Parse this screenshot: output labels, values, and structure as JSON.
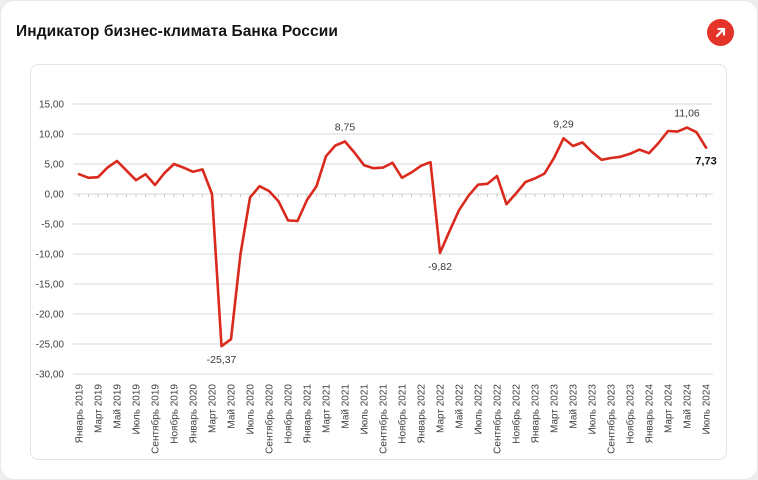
{
  "header": {
    "title": "Индикатор бизнес-климата Банка России",
    "export_button": {
      "icon": "arrow-up-right-icon",
      "color": "#e43329",
      "arrow_color": "#ffffff"
    }
  },
  "colors": {
    "line": "#da291d",
    "grid": "#d9d9d9",
    "axis_text": "#3f3f3f",
    "annotation_text": "#3a3a3a",
    "annotation_bold_text": "#141414",
    "panel_border": "#e4e4e4",
    "card_bg": "#ffffff",
    "page_bg": "#ededed"
  },
  "chart_data": {
    "type": "line",
    "title": "Индикатор бизнес-климата Банка России",
    "xlabel": "",
    "ylabel": "",
    "ylim": [
      -30,
      15
    ],
    "grid": "horizontal",
    "legend": "none",
    "y_ticks": [
      15,
      10,
      5,
      0,
      -5,
      -10,
      -15,
      -20,
      -25,
      -30
    ],
    "y_tick_labels": [
      "15,00",
      "10,00",
      "5,00",
      "0,00",
      "-5,00",
      "-10,00",
      "-15,00",
      "-20,00",
      "-25,00",
      "-30,00"
    ],
    "x_tick_labels": [
      "Январь 2019",
      "Март 2019",
      "Май 2019",
      "Июль 2019",
      "Сентябрь 2019",
      "Ноябрь 2019",
      "Январь 2020",
      "Март 2020",
      "Май 2020",
      "Июль 2020",
      "Сентябрь 2020",
      "Ноябрь 2020",
      "Январь 2021",
      "Март 2021",
      "Май 2021",
      "Июль 2021",
      "Сентябрь 2021",
      "Ноябрь 2021",
      "Январь 2022",
      "Март 2022",
      "Май 2022",
      "Июль 2022",
      "Сентябрь 2022",
      "Ноябрь 2022",
      "Январь 2023",
      "Март 2023",
      "Май 2023",
      "Июль 2023",
      "Сентябрь 2023",
      "Ноябрь 2023",
      "Январь 2024",
      "Март 2024",
      "Май 2024",
      "Июль 2024"
    ],
    "x_tick_every_n_months": 2,
    "series": [
      {
        "name": "Индикатор бизнес-климата",
        "start_month": "Январь 2019",
        "end_month": "Июль 2024",
        "values": [
          3.3,
          2.7,
          2.8,
          4.4,
          5.5,
          3.9,
          2.3,
          3.3,
          1.5,
          3.5,
          5.0,
          4.4,
          3.7,
          4.1,
          0.0,
          -25.37,
          -24.2,
          -10.0,
          -0.6,
          1.3,
          0.5,
          -1.2,
          -4.4,
          -4.5,
          -1.0,
          1.3,
          6.3,
          8.1,
          8.75,
          6.9,
          4.8,
          4.3,
          4.4,
          5.2,
          2.7,
          3.6,
          4.7,
          5.3,
          -9.82,
          -6.2,
          -2.7,
          -0.3,
          1.55,
          1.7,
          3.0,
          -1.7,
          0.1,
          2.0,
          2.6,
          3.4,
          6.0,
          9.29,
          8.0,
          8.6,
          7.0,
          5.7,
          6.0,
          6.2,
          6.7,
          7.4,
          6.8,
          8.5,
          10.5,
          10.4,
          11.06,
          10.3,
          7.73
        ]
      }
    ],
    "annotations": [
      {
        "text": "-25,37",
        "month_index": 15,
        "value": -25.37,
        "position": "below",
        "bold": false
      },
      {
        "text": "8,75",
        "month_index": 28,
        "value": 8.75,
        "position": "above",
        "bold": false
      },
      {
        "text": "-9,82",
        "month_index": 38,
        "value": -9.82,
        "position": "below",
        "bold": false
      },
      {
        "text": "9,29",
        "month_index": 51,
        "value": 9.29,
        "position": "above",
        "bold": false
      },
      {
        "text": "11,06",
        "month_index": 64,
        "value": 11.06,
        "position": "above",
        "bold": false
      },
      {
        "text": "7,73",
        "month_index": 66,
        "value": 7.73,
        "position": "below",
        "bold": true
      }
    ]
  }
}
